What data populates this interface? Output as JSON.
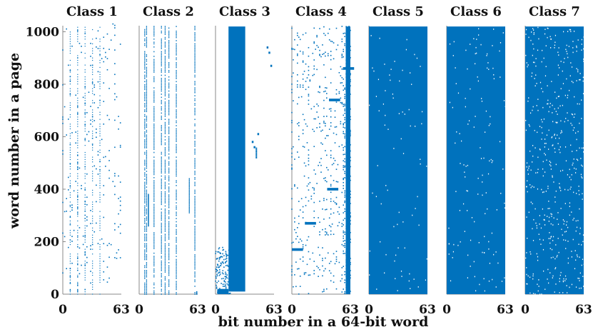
{
  "chart_data": {
    "type": "scatter",
    "xlabel": "bit number in a 64-bit word",
    "ylabel": "word number in a page",
    "xlim": [
      0,
      63
    ],
    "ylim": [
      0,
      1023
    ],
    "x_ticks": [
      "0",
      "63"
    ],
    "y_ticks": [
      "0",
      "200",
      "400",
      "600",
      "800",
      "1000"
    ],
    "y_tick_values": [
      0,
      200,
      400,
      600,
      800,
      1000
    ],
    "marker_color": "#0072BD",
    "panels": [
      {
        "title": "Class 1",
        "pattern": "sparse-columns",
        "description_values": {
          "density": 0.28,
          "dense_bits": [
            0,
            8,
            16,
            24,
            30,
            38,
            44,
            50,
            56,
            62
          ]
        }
      },
      {
        "title": "Class 2",
        "pattern": "few-vertical-lines",
        "description_values": {
          "line_bits": [
            6,
            8,
            16,
            24,
            28,
            32,
            40,
            60
          ],
          "segment_bit": 54,
          "segment_range": [
            310,
            440
          ]
        }
      },
      {
        "title": "Class 3",
        "pattern": "dense-band",
        "description_values": {
          "band_bits": [
            14,
            32
          ],
          "bottom_strip_range": [
            0,
            40
          ],
          "outlier_points": [
            [
              40,
              580
            ],
            [
              42,
              560
            ],
            [
              46,
              610
            ],
            [
              56,
              940
            ],
            [
              58,
              920
            ],
            [
              60,
              870
            ]
          ]
        }
      },
      {
        "title": "Class 4",
        "pattern": "mixed-columns-with-clusters",
        "description_values": {
          "cluster_rows": [
            170,
            270,
            400,
            740,
            860
          ],
          "dense_right_bits": [
            56,
            63
          ]
        }
      },
      {
        "title": "Class 5",
        "pattern": "fully-dense",
        "description_values": {
          "density": 0.97
        }
      },
      {
        "title": "Class 6",
        "pattern": "fully-dense",
        "description_values": {
          "density": 0.95
        }
      },
      {
        "title": "Class 7",
        "pattern": "near-dense-speckled",
        "description_values": {
          "density": 0.82
        }
      }
    ]
  }
}
